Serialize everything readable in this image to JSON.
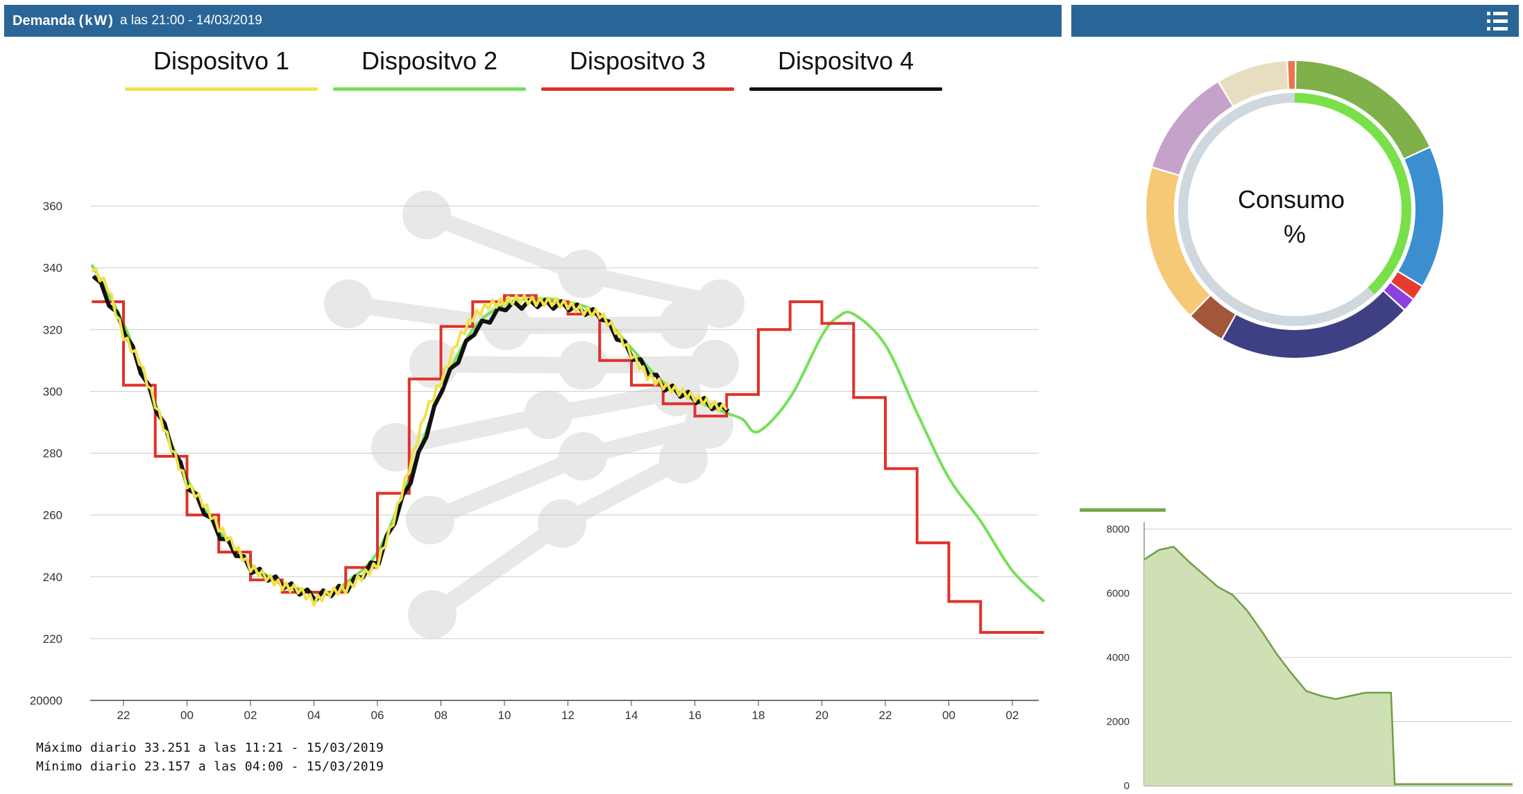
{
  "header": {
    "title_bold": "Demanda",
    "title_unit": "(kW)",
    "title_rest": "a las 21:00 - 14/03/2019"
  },
  "right_header": {
    "menu_icon": "list-icon"
  },
  "footer": {
    "max": "Máximo diario 33.251 a las 11:21 - 15/03/2019",
    "min": "Mínimo diario 23.157 a las 04:00 - 15/03/2019"
  },
  "donut": {
    "label_line1": "Consumo",
    "label_line2": "%"
  },
  "chart_data": [
    {
      "type": "line",
      "title": "",
      "x_ticks": [
        "22",
        "00",
        "02",
        "04",
        "06",
        "08",
        "10",
        "12",
        "14",
        "16",
        "18",
        "20",
        "22",
        "00",
        "02"
      ],
      "y_ticks": [
        "20000",
        "220",
        "240",
        "260",
        "280",
        "300",
        "320",
        "340",
        "360"
      ],
      "ylim": [
        200,
        360
      ],
      "grid": true,
      "legend_position": "top",
      "series": [
        {
          "name": "Dispositvo 1",
          "color": "#f0e24a",
          "x": [
            21.0,
            21.5,
            22.0,
            22.5,
            23.0,
            23.5,
            24.0,
            24.5,
            25.0,
            25.5,
            26.0,
            26.5,
            27.0,
            27.5,
            28.0,
            28.5,
            29.0,
            29.5,
            30.0,
            30.5,
            31.0,
            31.5,
            32.0,
            32.5,
            33.0,
            33.5,
            34.0,
            34.5,
            35.0,
            35.5,
            36.0,
            36.5,
            37.0,
            37.5,
            38.0,
            38.5,
            39.0,
            39.5,
            40.0,
            40.5,
            41.0
          ],
          "values": [
            340,
            334,
            318,
            310,
            296,
            282,
            270,
            264,
            256,
            250,
            243,
            240,
            237,
            236,
            232,
            235,
            236,
            240,
            244,
            258,
            275,
            293,
            303,
            316,
            324,
            328,
            329,
            330,
            329,
            329,
            328,
            326,
            325,
            320,
            312,
            305,
            302,
            300,
            298,
            296,
            294
          ]
        },
        {
          "name": "Dispositvo 2",
          "color": "#76e05a",
          "x": [
            21.0,
            22.0,
            23.0,
            24.0,
            25.0,
            26.0,
            27.0,
            28.0,
            28.5,
            29.0,
            30.0,
            31.0,
            32.0,
            33.0,
            34.0,
            35.0,
            36.0,
            37.0,
            38.0,
            39.0,
            40.0,
            41.0,
            41.5,
            42.0,
            43.0,
            44.0,
            44.5,
            45.0,
            46.0,
            47.0,
            48.0,
            49.0,
            50.0,
            51.0
          ],
          "values": [
            341,
            322,
            296,
            272,
            255,
            244,
            238,
            235,
            235,
            238,
            248,
            272,
            300,
            320,
            328,
            330,
            329,
            325,
            314,
            303,
            297,
            293,
            291,
            287,
            298,
            318,
            324,
            325,
            315,
            293,
            272,
            258,
            242,
            232
          ]
        },
        {
          "name": "Dispositvo 3",
          "color": "#e0312b",
          "x": [
            21.0,
            22.0,
            23.0,
            24.0,
            25.0,
            26.0,
            27.0,
            28.0,
            29.0,
            30.0,
            31.0,
            32.0,
            33.0,
            34.0,
            35.0,
            36.0,
            37.0,
            38.0,
            39.0,
            40.0,
            41.0,
            42.0,
            43.0,
            44.0,
            45.0,
            46.0,
            47.0,
            48.0,
            49.0,
            50.0,
            51.0
          ],
          "values": [
            329,
            302,
            279,
            260,
            248,
            239,
            235,
            235,
            243,
            267,
            304,
            321,
            329,
            331,
            329,
            325,
            310,
            302,
            296,
            292,
            299,
            320,
            329,
            322,
            298,
            275,
            251,
            232,
            222,
            222,
            222
          ]
        },
        {
          "name": "Dispositvo 4",
          "color": "#111111",
          "x": [
            21.0,
            22.0,
            23.0,
            24.0,
            25.0,
            26.0,
            27.0,
            28.0,
            29.0,
            30.0,
            31.0,
            32.0,
            33.0,
            34.0,
            35.0,
            36.0,
            37.0,
            38.0,
            39.0,
            40.0,
            41.0
          ],
          "values": [
            339,
            320,
            295,
            270,
            254,
            243,
            238,
            234,
            237,
            246,
            272,
            302,
            320,
            328,
            329,
            328,
            325,
            312,
            302,
            298,
            294
          ]
        }
      ]
    },
    {
      "type": "pie",
      "title": "",
      "slices": [
        {
          "color": "#7fb04a",
          "value": 15.8
        },
        {
          "color": "#3b8fd0",
          "value": 13.6
        },
        {
          "color": "#e73a2e",
          "value": 1.5
        },
        {
          "color": "#8e3fe0",
          "value": 1.3
        },
        {
          "color": "#3f3f83",
          "value": 18.7
        },
        {
          "color": "#a2573a",
          "value": 3.7
        },
        {
          "color": "#f6c977",
          "value": 15.1
        },
        {
          "color": "#c4a2c9",
          "value": 10.4
        },
        {
          "color": "#e7ddc0",
          "value": 6.8
        },
        {
          "color": "#f0734a",
          "value": 0.8
        }
      ],
      "inner_ring": {
        "color": "#7ae04a",
        "track": "#cfd8de",
        "value_percent": 38
      }
    },
    {
      "type": "area",
      "title": "",
      "y_ticks": [
        "0",
        "2000",
        "4000",
        "6000",
        "8000"
      ],
      "ylim": [
        0,
        8000
      ],
      "color": "#9bc77a",
      "x": [
        0,
        4,
        8,
        12,
        16,
        20,
        24,
        28,
        32,
        36,
        40,
        44,
        48,
        52,
        56,
        60,
        64,
        66,
        67,
        68,
        72,
        76,
        80,
        84,
        88,
        92,
        96,
        100
      ],
      "values": [
        7050,
        7350,
        7450,
        7000,
        6600,
        6200,
        5950,
        5450,
        4800,
        4100,
        3500,
        2950,
        2800,
        2700,
        2800,
        2900,
        2900,
        2900,
        2900,
        50,
        50,
        50,
        50,
        50,
        50,
        50,
        50,
        50
      ]
    }
  ]
}
